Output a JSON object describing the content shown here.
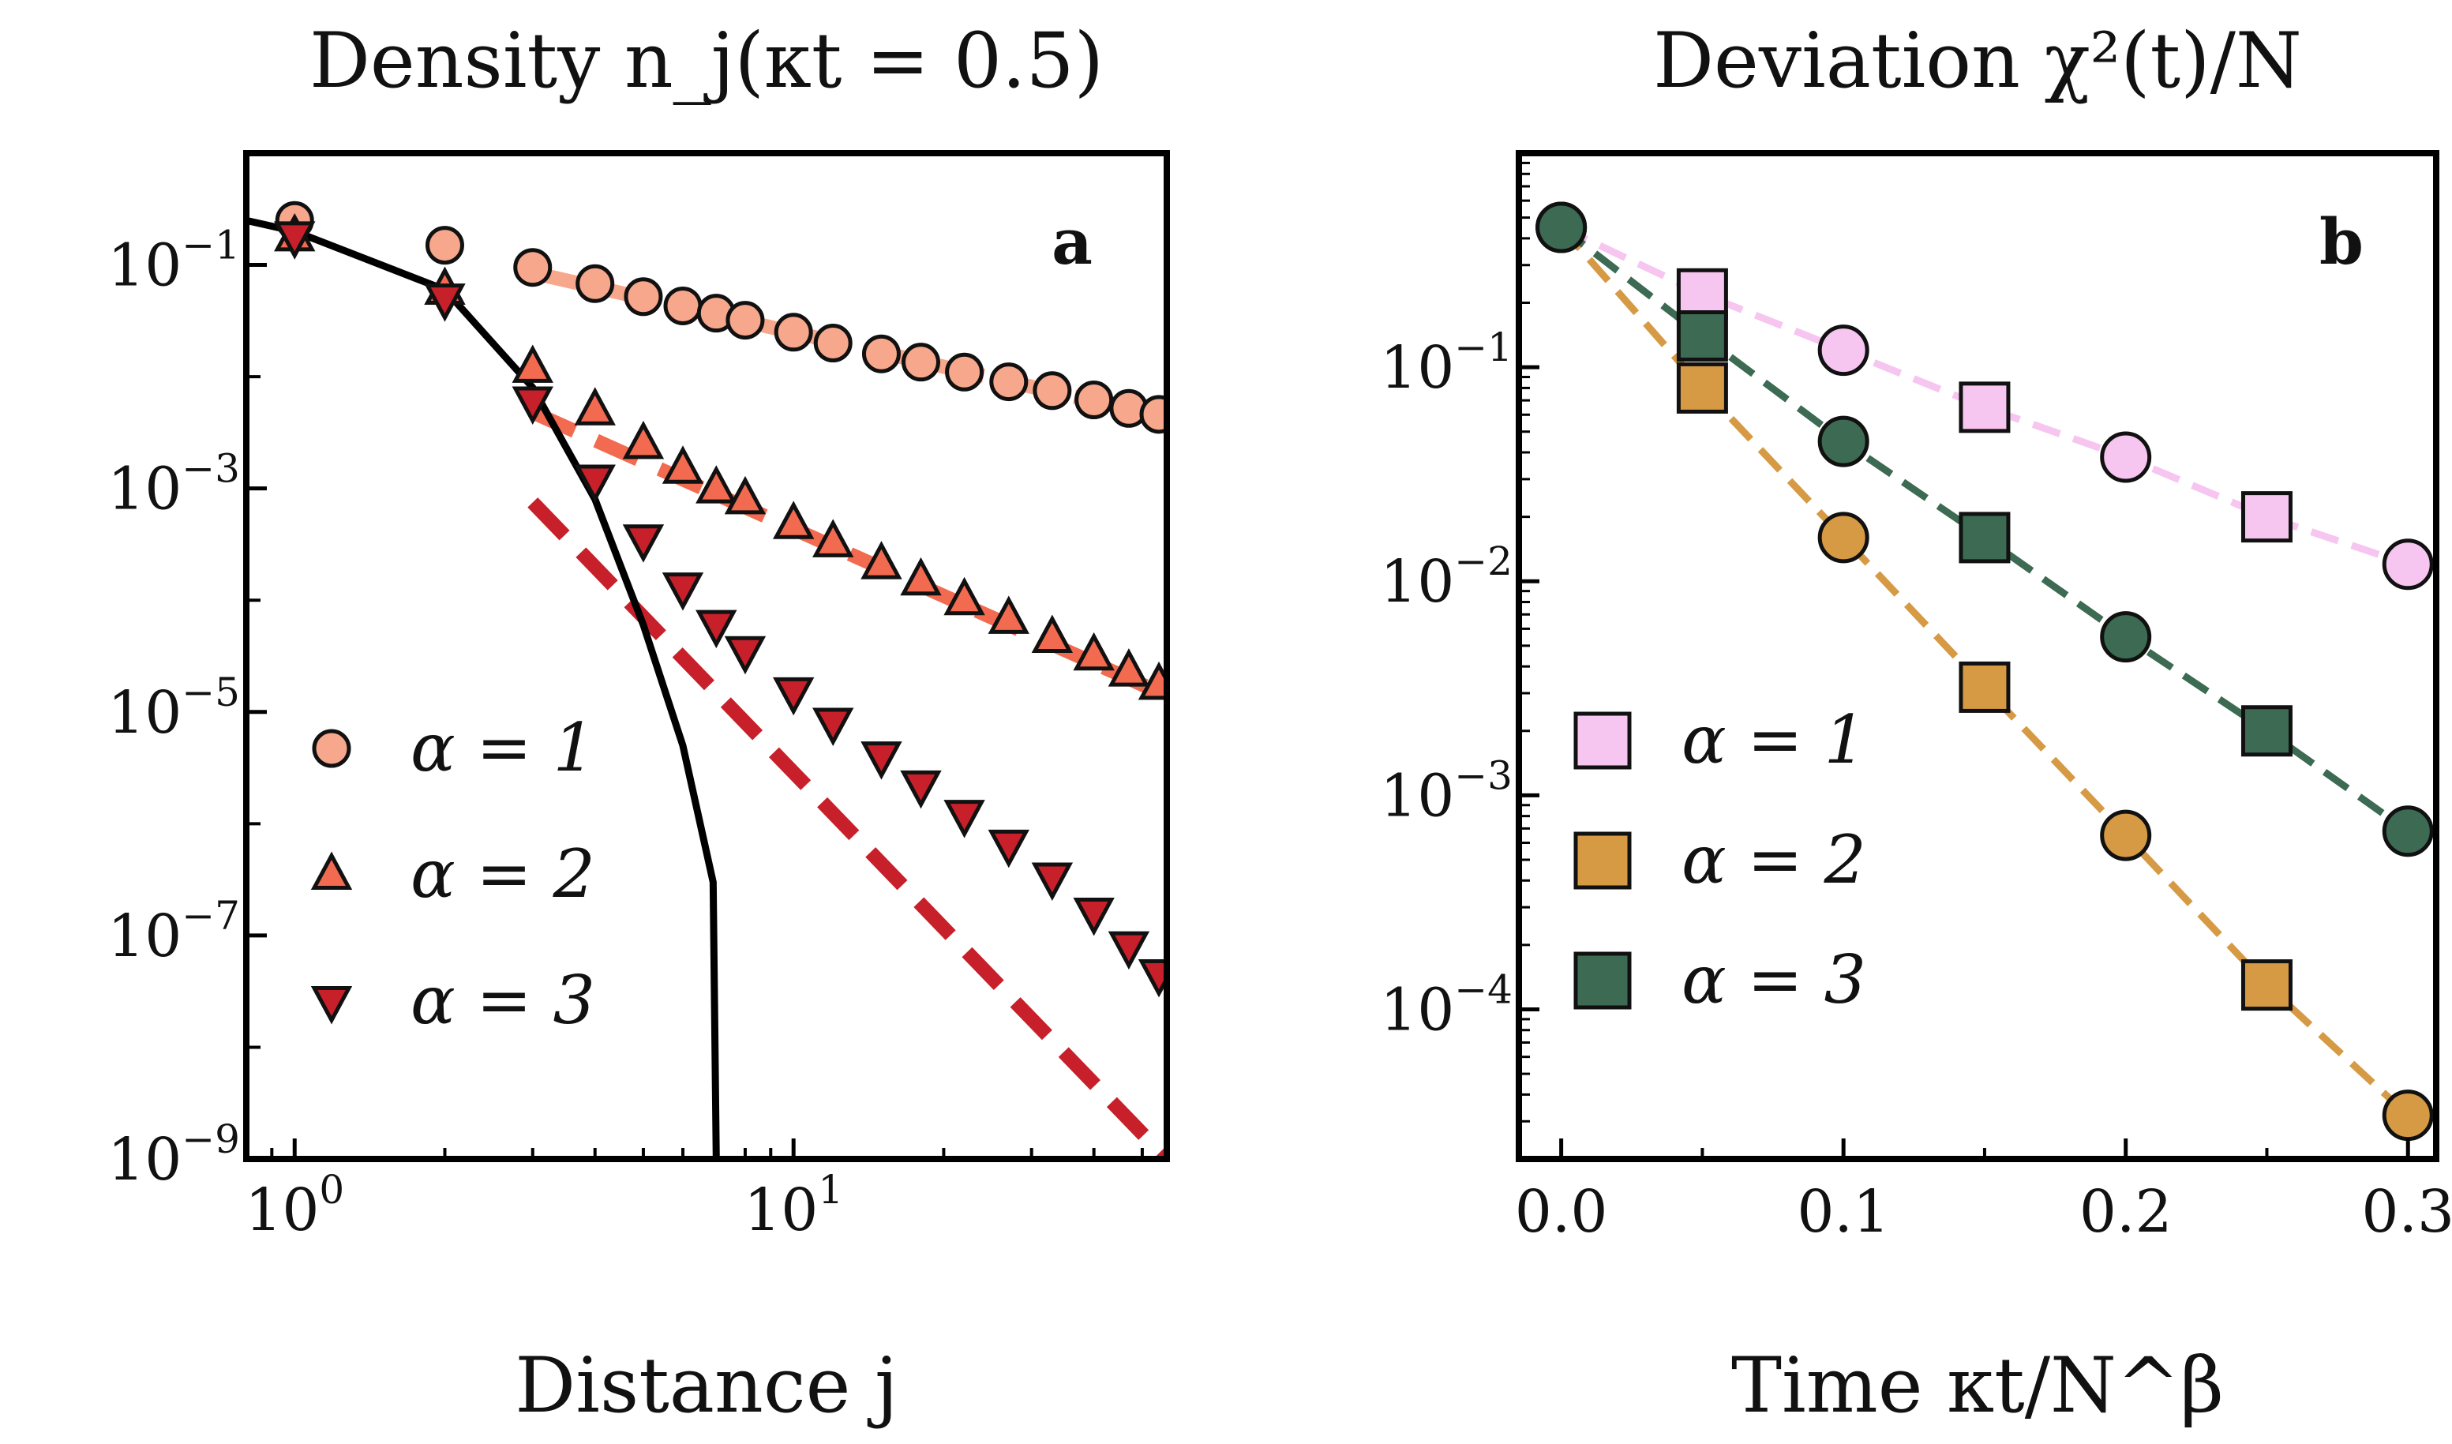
{
  "chart_data": [
    {
      "type": "scatter",
      "panel": "a",
      "title": "Density n_j(κt = 0.5)",
      "xlabel": "Distance j",
      "ylabel": "",
      "xscale": "log",
      "yscale": "log",
      "xlim": [
        0.8,
        56
      ],
      "ylim": [
        1e-09,
        1.0
      ],
      "x_ticks": [
        {
          "value": 1,
          "base": "10",
          "exp": "0"
        },
        {
          "value": 10,
          "base": "10",
          "exp": "1"
        }
      ],
      "y_ticks": [
        {
          "value": 0.1,
          "base": "10",
          "exp": "−1"
        },
        {
          "value": 0.001,
          "base": "10",
          "exp": "−3"
        },
        {
          "value": 1e-05,
          "base": "10",
          "exp": "−5"
        },
        {
          "value": 1e-07,
          "base": "10",
          "exp": "−7"
        },
        {
          "value": 1e-09,
          "base": "10",
          "exp": "−9"
        }
      ],
      "legend": {
        "placement": "lower-left",
        "entries": [
          {
            "label": "α = 1",
            "marker": "circle",
            "color": "#f6a78c"
          },
          {
            "label": "α = 2",
            "marker": "triangle-up",
            "color": "#f26a4f"
          },
          {
            "label": "α = 3",
            "marker": "triangle-down",
            "color": "#c8202a"
          }
        ]
      },
      "series": [
        {
          "label": "α = 1",
          "marker": "circle",
          "color": "#f6a78c",
          "points": [
            [
              1,
              0.25
            ],
            [
              2,
              0.15
            ],
            [
              3,
              0.095
            ],
            [
              4,
              0.068
            ],
            [
              5,
              0.052
            ],
            [
              6,
              0.043
            ],
            [
              7,
              0.037
            ],
            [
              8,
              0.032
            ],
            [
              10,
              0.025
            ],
            [
              12,
              0.02
            ],
            [
              15,
              0.016
            ],
            [
              18,
              0.0135
            ],
            [
              22,
              0.011
            ],
            [
              27,
              0.009
            ],
            [
              33,
              0.0075
            ],
            [
              40,
              0.0062
            ],
            [
              47,
              0.0052
            ],
            [
              54,
              0.0046
            ]
          ]
        },
        {
          "label": "α = 2",
          "marker": "triangle-up",
          "color": "#f26a4f",
          "points": [
            [
              1,
              0.18
            ],
            [
              2,
              0.06
            ],
            [
              3,
              0.012
            ],
            [
              4,
              0.005
            ],
            [
              5,
              0.0025
            ],
            [
              6,
              0.0015
            ],
            [
              7,
              0.001
            ],
            [
              8,
              0.0008
            ],
            [
              10,
              0.00048
            ],
            [
              12,
              0.00033
            ],
            [
              15,
              0.00021
            ],
            [
              18,
              0.00015
            ],
            [
              22,
              0.0001
            ],
            [
              27,
              6.8e-05
            ],
            [
              33,
              4.6e-05
            ],
            [
              40,
              3.2e-05
            ],
            [
              47,
              2.3e-05
            ],
            [
              54,
              1.75e-05
            ]
          ]
        },
        {
          "label": "α = 3",
          "marker": "triangle-down",
          "color": "#c8202a",
          "points": [
            [
              1,
              0.18
            ],
            [
              2,
              0.05
            ],
            [
              3,
              0.006
            ],
            [
              4,
              0.0012
            ],
            [
              5,
              0.00035
            ],
            [
              6,
              0.00013
            ],
            [
              7,
              6e-05
            ],
            [
              8,
              3.5e-05
            ],
            [
              10,
              1.5e-05
            ],
            [
              12,
              8e-06
            ],
            [
              15,
              4e-06
            ],
            [
              18,
              2.2e-06
            ],
            [
              22,
              1.2e-06
            ],
            [
              27,
              6.5e-07
            ],
            [
              33,
              3.3e-07
            ],
            [
              40,
              1.6e-07
            ],
            [
              47,
              8e-08
            ],
            [
              54,
              4.5e-08
            ]
          ]
        }
      ],
      "fit_lines": [
        {
          "color": "#f6a78c",
          "from": [
            3,
            0.085
          ],
          "to": [
            56,
            0.0043
          ]
        },
        {
          "color": "#f26a4f",
          "from": [
            3,
            0.0048
          ],
          "to": [
            56,
            1.4e-05
          ]
        },
        {
          "color": "#c8202a",
          "from": [
            3,
            0.00075
          ],
          "to": [
            56,
            1e-09
          ]
        }
      ],
      "black_curve": {
        "color": "#000000",
        "points": [
          [
            0.8,
            0.25
          ],
          [
            1,
            0.2
          ],
          [
            2,
            0.06
          ],
          [
            3,
            0.008
          ],
          [
            4,
            0.0008
          ],
          [
            5,
            6e-05
          ],
          [
            6,
            5e-06
          ],
          [
            6.9,
            3e-07
          ],
          [
            7,
            1e-09
          ]
        ]
      }
    },
    {
      "type": "scatter",
      "panel": "b",
      "title": "Deviation χ²(t)/N",
      "xlabel": "Time κt/N^β",
      "ylabel": "",
      "xscale": "linear",
      "yscale": "log",
      "xlim": [
        -0.015,
        0.31
      ],
      "ylim": [
        2e-05,
        1.0
      ],
      "x_ticks": [
        {
          "value": 0.0,
          "label": "0.0"
        },
        {
          "value": 0.1,
          "label": "0.1"
        },
        {
          "value": 0.2,
          "label": "0.2"
        },
        {
          "value": 0.3,
          "label": "0.3"
        }
      ],
      "y_ticks": [
        {
          "value": 0.1,
          "base": "10",
          "exp": "−1"
        },
        {
          "value": 0.01,
          "base": "10",
          "exp": "−2"
        },
        {
          "value": 0.001,
          "base": "10",
          "exp": "−3"
        },
        {
          "value": 0.0001,
          "base": "10",
          "exp": "−4"
        }
      ],
      "legend": {
        "placement": "lower-left",
        "entries": [
          {
            "label": "α = 1",
            "marker": "square",
            "color": "#f6c5f0"
          },
          {
            "label": "α = 2",
            "marker": "square",
            "color": "#d69a45"
          },
          {
            "label": "α = 3",
            "marker": "square",
            "color": "#3c6a52"
          }
        ]
      },
      "series": [
        {
          "label": "α = 1",
          "color": "#f6c5f0",
          "points": [
            [
              0.0,
              0.45
            ],
            [
              0.05,
              0.22
            ],
            [
              0.1,
              0.12
            ],
            [
              0.15,
              0.065
            ],
            [
              0.2,
              0.038
            ],
            [
              0.25,
              0.02
            ],
            [
              0.3,
              0.012
            ]
          ],
          "markers": [
            "circle",
            "square",
            "circle",
            "square",
            "circle",
            "square",
            "circle"
          ]
        },
        {
          "label": "α = 2",
          "color": "#d69a45",
          "points": [
            [
              0.0,
              0.45
            ],
            [
              0.05,
              0.08
            ],
            [
              0.1,
              0.016
            ],
            [
              0.15,
              0.0032
            ],
            [
              0.2,
              0.00065
            ],
            [
              0.25,
              0.00013
            ],
            [
              0.3,
              3.2e-05
            ]
          ],
          "markers": [
            "circle",
            "square",
            "circle",
            "square",
            "circle",
            "square",
            "circle"
          ]
        },
        {
          "label": "α = 3",
          "color": "#3c6a52",
          "points": [
            [
              0.0,
              0.45
            ],
            [
              0.05,
              0.14
            ],
            [
              0.1,
              0.045
            ],
            [
              0.15,
              0.016
            ],
            [
              0.2,
              0.0055
            ],
            [
              0.25,
              0.002
            ],
            [
              0.3,
              0.00068
            ]
          ],
          "markers": [
            "circle",
            "square",
            "circle",
            "square",
            "circle",
            "square",
            "circle"
          ]
        }
      ]
    }
  ]
}
